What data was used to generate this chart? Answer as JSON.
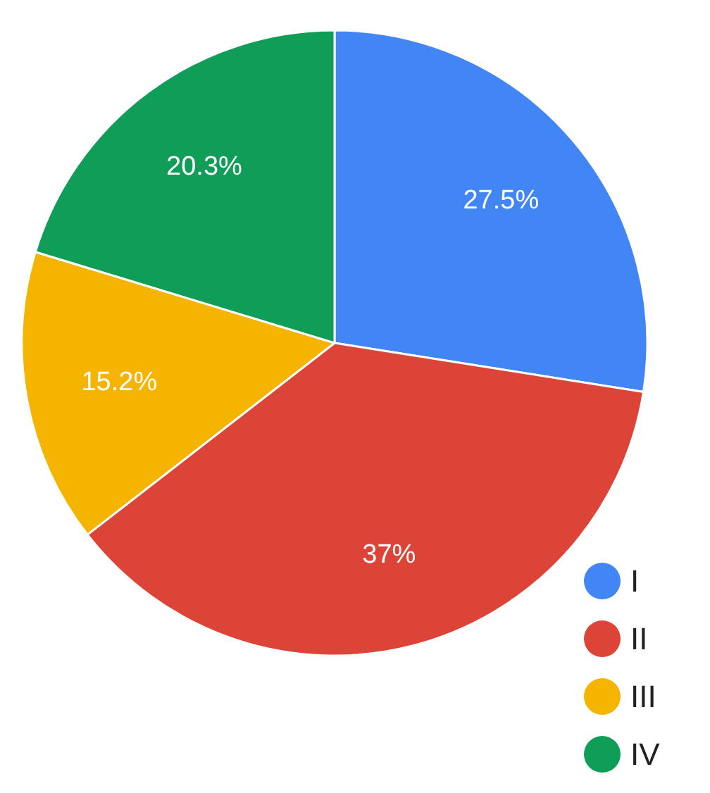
{
  "chart_data": {
    "type": "pie",
    "categories": [
      "I",
      "II",
      "III",
      "IV"
    ],
    "values": [
      27.5,
      37,
      15.2,
      20.3
    ],
    "colors": [
      "#4285f4",
      "#db4437",
      "#f4b400",
      "#0f9d58"
    ],
    "value_labels": [
      "27.5%",
      "37%",
      "15.2%",
      "20.3%"
    ],
    "legend": "bottom right"
  }
}
